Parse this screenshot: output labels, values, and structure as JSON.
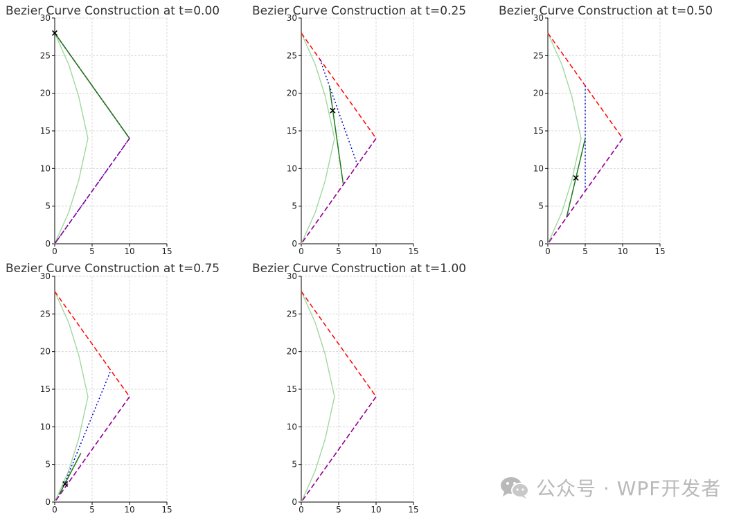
{
  "watermark": {
    "text": "公众号 · WPF开发者",
    "icon": "wechat-icon"
  },
  "chart_data": [
    {
      "type": "line",
      "title": "Bezier Curve Construction at t=0.00",
      "t": 0.0,
      "xlim": [
        0,
        15
      ],
      "ylim": [
        0,
        30
      ],
      "xticks": [
        0,
        5,
        10,
        15
      ],
      "yticks": [
        0,
        5,
        10,
        15,
        20,
        25,
        30
      ],
      "grid": true,
      "series": [
        {
          "role": "curve",
          "color": "#9fd89f",
          "style": "solid",
          "points": [
            [
              0,
              0
            ],
            [
              1.88,
              4.2
            ],
            [
              3.2,
              8.4
            ],
            [
              4.13,
              12.6
            ],
            [
              4.44,
              14
            ],
            [
              4.13,
              15.4
            ],
            [
              3.2,
              19.6
            ],
            [
              1.88,
              23.8
            ],
            [
              0,
              28
            ]
          ]
        },
        {
          "role": "control-polygon",
          "color": "#ff0000",
          "style": "dashed",
          "points": [
            [
              0,
              28
            ],
            [
              10,
              14
            ],
            [
              0,
              0
            ]
          ]
        },
        {
          "role": "level-1",
          "color": "#0000cc",
          "style": "dotted",
          "points": [
            [
              0,
              28
            ],
            [
              10,
              14
            ],
            [
              0,
              0
            ]
          ]
        },
        {
          "role": "level-2",
          "color": "#1a7a1a",
          "style": "solid",
          "points": [
            [
              0,
              28
            ],
            [
              10,
              14
            ]
          ]
        },
        {
          "role": "level-3",
          "color": "#8800aa",
          "style": "dashed",
          "points": [
            [
              10,
              14
            ],
            [
              0,
              0
            ]
          ]
        }
      ],
      "point": [
        0,
        28
      ]
    },
    {
      "type": "line",
      "title": "Bezier Curve Construction at t=0.25",
      "t": 0.25,
      "xlim": [
        0,
        15
      ],
      "ylim": [
        0,
        30
      ],
      "xticks": [
        0,
        5,
        10,
        15
      ],
      "yticks": [
        0,
        5,
        10,
        15,
        20,
        25,
        30
      ],
      "grid": true,
      "series": [
        {
          "role": "curve",
          "color": "#9fd89f",
          "style": "solid",
          "points": [
            [
              0,
              0
            ],
            [
              1.88,
              4.2
            ],
            [
              3.2,
              8.4
            ],
            [
              4.13,
              12.6
            ],
            [
              4.44,
              14
            ],
            [
              4.13,
              15.4
            ],
            [
              3.2,
              19.6
            ],
            [
              1.88,
              23.8
            ],
            [
              0,
              28
            ]
          ]
        },
        {
          "role": "control-polygon",
          "color": "#ff0000",
          "style": "dashed",
          "points": [
            [
              0,
              28
            ],
            [
              10,
              14
            ],
            [
              0,
              0
            ]
          ]
        },
        {
          "role": "level-1",
          "color": "#0000cc",
          "style": "dotted",
          "points": [
            [
              2.5,
              24.5
            ],
            [
              7.5,
              10.5
            ]
          ]
        },
        {
          "role": "level-2",
          "color": "#1a7a1a",
          "style": "solid",
          "points": [
            [
              3.75,
              21
            ],
            [
              5.6,
              8
            ]
          ]
        },
        {
          "role": "level-3",
          "color": "#8800aa",
          "style": "dashed",
          "points": [
            [
              10,
              14
            ],
            [
              0,
              0
            ]
          ]
        }
      ],
      "point": [
        4.2,
        17.7
      ]
    },
    {
      "type": "line",
      "title": "Bezier Curve Construction at t=0.50",
      "t": 0.5,
      "xlim": [
        0,
        15
      ],
      "ylim": [
        0,
        30
      ],
      "xticks": [
        0,
        5,
        10,
        15
      ],
      "yticks": [
        0,
        5,
        10,
        15,
        20,
        25,
        30
      ],
      "grid": true,
      "series": [
        {
          "role": "curve",
          "color": "#9fd89f",
          "style": "solid",
          "points": [
            [
              0,
              0
            ],
            [
              1.88,
              4.2
            ],
            [
              3.2,
              8.4
            ],
            [
              4.13,
              12.6
            ],
            [
              4.44,
              14
            ],
            [
              4.13,
              15.4
            ],
            [
              3.2,
              19.6
            ],
            [
              1.88,
              23.8
            ],
            [
              0,
              28
            ]
          ]
        },
        {
          "role": "control-polygon",
          "color": "#ff0000",
          "style": "dashed",
          "points": [
            [
              0,
              28
            ],
            [
              10,
              14
            ],
            [
              0,
              0
            ]
          ]
        },
        {
          "role": "level-1",
          "color": "#0000cc",
          "style": "dotted",
          "points": [
            [
              5,
              21
            ],
            [
              5,
              7
            ]
          ]
        },
        {
          "role": "level-2",
          "color": "#1a7a1a",
          "style": "solid",
          "points": [
            [
              2.5,
              3.5
            ],
            [
              5,
              14
            ]
          ]
        },
        {
          "role": "level-3",
          "color": "#8800aa",
          "style": "dashed",
          "points": [
            [
              10,
              14
            ],
            [
              0,
              0
            ]
          ]
        }
      ],
      "point": [
        3.75,
        8.75
      ]
    },
    {
      "type": "line",
      "title": "Bezier Curve Construction at t=0.75",
      "t": 0.75,
      "xlim": [
        0,
        15
      ],
      "ylim": [
        0,
        30
      ],
      "xticks": [
        0,
        5,
        10,
        15
      ],
      "yticks": [
        0,
        5,
        10,
        15,
        20,
        25,
        30
      ],
      "grid": true,
      "series": [
        {
          "role": "curve",
          "color": "#9fd89f",
          "style": "solid",
          "points": [
            [
              0,
              0
            ],
            [
              1.88,
              4.2
            ],
            [
              3.2,
              8.4
            ],
            [
              4.13,
              12.6
            ],
            [
              4.44,
              14
            ],
            [
              4.13,
              15.4
            ],
            [
              3.2,
              19.6
            ],
            [
              1.88,
              23.8
            ],
            [
              0,
              28
            ]
          ]
        },
        {
          "role": "control-polygon",
          "color": "#ff0000",
          "style": "dashed",
          "points": [
            [
              0,
              28
            ],
            [
              10,
              14
            ],
            [
              0,
              0
            ]
          ]
        },
        {
          "role": "level-1",
          "color": "#0000cc",
          "style": "dotted",
          "points": [
            [
              1.2,
              2.2
            ],
            [
              7.5,
              17.5
            ]
          ]
        },
        {
          "role": "level-2",
          "color": "#1a7a1a",
          "style": "solid",
          "points": [
            [
              0.6,
              1
            ],
            [
              3.5,
              6.5
            ]
          ]
        },
        {
          "role": "level-3",
          "color": "#8800aa",
          "style": "dashed",
          "points": [
            [
              10,
              14
            ],
            [
              0,
              0
            ]
          ]
        }
      ],
      "point": [
        1.4,
        2.4
      ]
    },
    {
      "type": "line",
      "title": "Bezier Curve Construction at t=1.00",
      "t": 1.0,
      "xlim": [
        0,
        15
      ],
      "ylim": [
        0,
        30
      ],
      "xticks": [
        0,
        5,
        10,
        15
      ],
      "yticks": [
        0,
        5,
        10,
        15,
        20,
        25,
        30
      ],
      "grid": true,
      "series": [
        {
          "role": "curve",
          "color": "#9fd89f",
          "style": "solid",
          "points": [
            [
              0,
              0
            ],
            [
              1.88,
              4.2
            ],
            [
              3.2,
              8.4
            ],
            [
              4.13,
              12.6
            ],
            [
              4.44,
              14
            ],
            [
              4.13,
              15.4
            ],
            [
              3.2,
              19.6
            ],
            [
              1.88,
              23.8
            ],
            [
              0,
              28
            ]
          ]
        },
        {
          "role": "control-polygon",
          "color": "#ff0000",
          "style": "dashed",
          "points": [
            [
              0,
              28
            ],
            [
              10,
              14
            ],
            [
              0,
              0
            ]
          ]
        },
        {
          "role": "level-3",
          "color": "#8800aa",
          "style": "dashed",
          "points": [
            [
              10,
              14
            ],
            [
              0,
              0
            ]
          ]
        }
      ],
      "point": null
    }
  ]
}
